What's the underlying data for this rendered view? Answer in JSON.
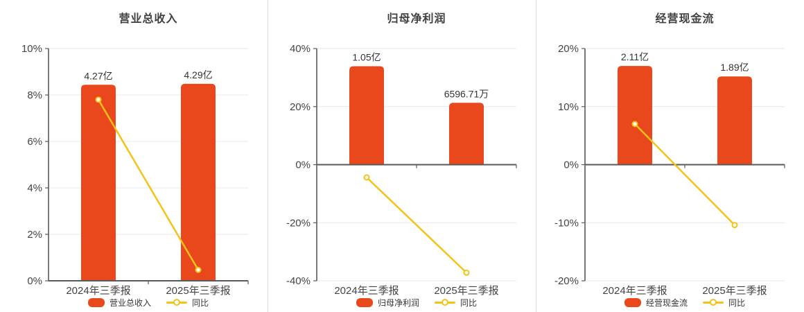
{
  "colors": {
    "bar": "#e8481c",
    "line": "#f3c318",
    "grid": "#e2e7f1",
    "axis": "#58595b",
    "title_text": "#404040",
    "tick_text": "#444444",
    "value_label_text": "#333333",
    "legend_text": "#333333",
    "marker_fill": "#ffffff",
    "divider": "#dcdcdc",
    "background": "#ffffff"
  },
  "chart_data": [
    {
      "type": "bar",
      "title": "营业总收入",
      "categories": [
        "2024年三季报",
        "2025年三季报"
      ],
      "ylim": [
        0,
        10
      ],
      "yticks": [
        0,
        2,
        4,
        6,
        8,
        10
      ],
      "ytick_suffix": "%",
      "grid": true,
      "legend_position": "bottom",
      "series": [
        {
          "name": "营业总收入",
          "type": "bar",
          "value_labels": [
            "4.27亿",
            "4.29亿"
          ],
          "plotted_pct": [
            8.44,
            8.48
          ]
        },
        {
          "name": "同比",
          "type": "line",
          "values_pct": [
            7.8,
            0.47
          ]
        }
      ]
    },
    {
      "type": "bar",
      "title": "归母净利润",
      "categories": [
        "2024年三季报",
        "2025年三季报"
      ],
      "ylim": [
        -40,
        40
      ],
      "yticks": [
        -40,
        -20,
        0,
        20,
        40
      ],
      "ytick_suffix": "%",
      "grid": true,
      "legend_position": "bottom",
      "series": [
        {
          "name": "归母净利润",
          "type": "bar",
          "value_labels": [
            "1.05亿",
            "6596.71万"
          ],
          "plotted_pct": [
            33.9,
            21.3
          ]
        },
        {
          "name": "同比",
          "type": "line",
          "values_pct": [
            -4.4,
            -37.2
          ]
        }
      ]
    },
    {
      "type": "bar",
      "title": "经营现金流",
      "categories": [
        "2024年三季报",
        "2025年三季报"
      ],
      "ylim": [
        -20,
        20
      ],
      "yticks": [
        -20,
        -10,
        0,
        10,
        20
      ],
      "ytick_suffix": "%",
      "grid": true,
      "legend_position": "bottom",
      "series": [
        {
          "name": "经营现金流",
          "type": "bar",
          "value_labels": [
            "2.11亿",
            "1.89亿"
          ],
          "plotted_pct": [
            17.0,
            15.2
          ]
        },
        {
          "name": "同比",
          "type": "line",
          "values_pct": [
            7.0,
            -10.4
          ]
        }
      ]
    }
  ]
}
